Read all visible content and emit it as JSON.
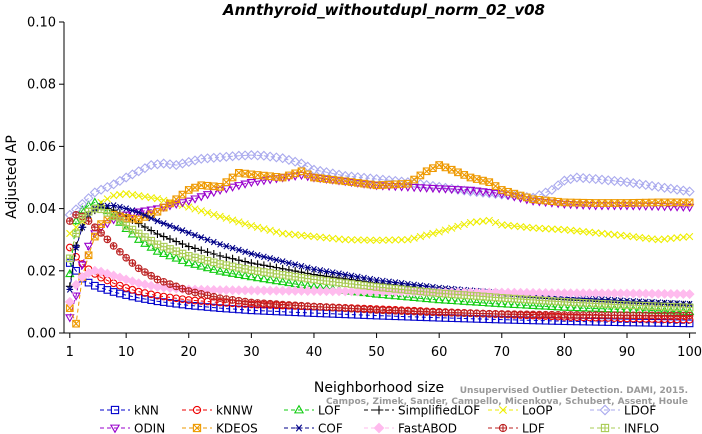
{
  "chart_data": {
    "type": "line",
    "title": "Annthyroid_withoutdupl_norm_02_v08",
    "xlabel": "Neighborhood size",
    "ylabel": "Adjusted AP",
    "xlim": [
      1,
      100
    ],
    "ylim": [
      0,
      0.1
    ],
    "xticks": [
      1,
      10,
      20,
      30,
      40,
      50,
      60,
      70,
      80,
      90,
      100
    ],
    "yticks": [
      "0.00",
      "0.02",
      "0.04",
      "0.06",
      "0.08",
      "0.10"
    ],
    "grid": false,
    "legend_position": "bottom",
    "watermark": [
      "Unsupervised Outlier Detection. DAMI, 2015.",
      "Campos, Zimek, Sander, Campello, Micenkova, Schubert, Assent, Houle"
    ],
    "series": [
      {
        "name": "kNN",
        "color": "#0000cc",
        "marker": "square",
        "points": [
          [
            1,
            0.0225
          ],
          [
            2,
            0.02
          ],
          [
            3,
            0.0175
          ],
          [
            4,
            0.0162
          ],
          [
            5,
            0.0152
          ],
          [
            6,
            0.0145
          ],
          [
            8,
            0.0132
          ],
          [
            10,
            0.0122
          ],
          [
            12,
            0.0113
          ],
          [
            15,
            0.0102
          ],
          [
            20,
            0.0089
          ],
          [
            25,
            0.008
          ],
          [
            30,
            0.0073
          ],
          [
            40,
            0.0064
          ],
          [
            50,
            0.0056
          ],
          [
            60,
            0.0049
          ],
          [
            70,
            0.0043
          ],
          [
            80,
            0.0038
          ],
          [
            90,
            0.0034
          ],
          [
            100,
            0.0031
          ]
        ]
      },
      {
        "name": "kNNW",
        "color": "#ee0000",
        "marker": "circle",
        "points": [
          [
            1,
            0.0275
          ],
          [
            2,
            0.0245
          ],
          [
            3,
            0.0222
          ],
          [
            4,
            0.0205
          ],
          [
            5,
            0.019
          ],
          [
            6,
            0.0178
          ],
          [
            8,
            0.016
          ],
          [
            10,
            0.0145
          ],
          [
            12,
            0.0133
          ],
          [
            15,
            0.012
          ],
          [
            20,
            0.0106
          ],
          [
            25,
            0.0098
          ],
          [
            30,
            0.0092
          ],
          [
            40,
            0.0085
          ],
          [
            50,
            0.0077
          ],
          [
            60,
            0.0068
          ],
          [
            70,
            0.006
          ],
          [
            80,
            0.0052
          ],
          [
            90,
            0.0047
          ],
          [
            100,
            0.0043
          ]
        ]
      },
      {
        "name": "LOF",
        "color": "#11cc11",
        "marker": "triangle-up",
        "points": [
          [
            1,
            0.019
          ],
          [
            2,
            0.036
          ],
          [
            3,
            0.0395
          ],
          [
            4,
            0.041
          ],
          [
            5,
            0.042
          ],
          [
            6,
            0.041
          ],
          [
            8,
            0.0375
          ],
          [
            10,
            0.0335
          ],
          [
            12,
            0.03
          ],
          [
            15,
            0.0262
          ],
          [
            20,
            0.0225
          ],
          [
            25,
            0.0198
          ],
          [
            30,
            0.018
          ],
          [
            40,
            0.0148
          ],
          [
            50,
            0.0124
          ],
          [
            60,
            0.0106
          ],
          [
            70,
            0.0093
          ],
          [
            80,
            0.0082
          ],
          [
            90,
            0.0075
          ],
          [
            100,
            0.0068
          ]
        ]
      },
      {
        "name": "SimplifiedLOF",
        "color": "#000000",
        "marker": "plus",
        "points": [
          [
            1,
            0.015
          ],
          [
            2,
            0.028
          ],
          [
            3,
            0.034
          ],
          [
            4,
            0.038
          ],
          [
            5,
            0.0395
          ],
          [
            6,
            0.0405
          ],
          [
            8,
            0.0395
          ],
          [
            10,
            0.0375
          ],
          [
            12,
            0.0352
          ],
          [
            15,
            0.0318
          ],
          [
            20,
            0.0278
          ],
          [
            25,
            0.0248
          ],
          [
            30,
            0.0225
          ],
          [
            40,
            0.0188
          ],
          [
            50,
            0.016
          ],
          [
            60,
            0.0138
          ],
          [
            70,
            0.0121
          ],
          [
            80,
            0.0107
          ],
          [
            90,
            0.0097
          ],
          [
            100,
            0.009
          ]
        ]
      },
      {
        "name": "LoOP",
        "color": "#eeee00",
        "marker": "x",
        "points": [
          [
            1,
            0.032
          ],
          [
            2,
            0.034
          ],
          [
            4,
            0.0378
          ],
          [
            6,
            0.042
          ],
          [
            8,
            0.0442
          ],
          [
            10,
            0.0448
          ],
          [
            15,
            0.0432
          ],
          [
            20,
            0.0405
          ],
          [
            25,
            0.0375
          ],
          [
            30,
            0.0345
          ],
          [
            35,
            0.032
          ],
          [
            40,
            0.031
          ],
          [
            45,
            0.03
          ],
          [
            50,
            0.0298
          ],
          [
            55,
            0.03
          ],
          [
            60,
            0.0325
          ],
          [
            65,
            0.0355
          ],
          [
            68,
            0.0362
          ],
          [
            70,
            0.0348
          ],
          [
            75,
            0.0338
          ],
          [
            80,
            0.0332
          ],
          [
            85,
            0.0322
          ],
          [
            90,
            0.0312
          ],
          [
            95,
            0.03
          ],
          [
            100,
            0.031
          ]
        ]
      },
      {
        "name": "LDOF",
        "color": "#aaaaee",
        "marker": "diamond",
        "points": [
          [
            1,
            0.038
          ],
          [
            3,
            0.0415
          ],
          [
            5,
            0.0452
          ],
          [
            8,
            0.0478
          ],
          [
            10,
            0.05
          ],
          [
            12,
            0.052
          ],
          [
            14,
            0.054
          ],
          [
            16,
            0.0545
          ],
          [
            18,
            0.054
          ],
          [
            20,
            0.055
          ],
          [
            22,
            0.056
          ],
          [
            25,
            0.0565
          ],
          [
            28,
            0.057
          ],
          [
            30,
            0.0572
          ],
          [
            32,
            0.057
          ],
          [
            35,
            0.0562
          ],
          [
            38,
            0.0545
          ],
          [
            40,
            0.0525
          ],
          [
            45,
            0.0505
          ],
          [
            50,
            0.0495
          ],
          [
            55,
            0.0485
          ],
          [
            60,
            0.047
          ],
          [
            65,
            0.0455
          ],
          [
            70,
            0.0445
          ],
          [
            75,
            0.0435
          ],
          [
            78,
            0.046
          ],
          [
            80,
            0.049
          ],
          [
            82,
            0.05
          ],
          [
            85,
            0.0495
          ],
          [
            90,
            0.0485
          ],
          [
            95,
            0.047
          ],
          [
            100,
            0.0455
          ]
        ]
      },
      {
        "name": "ODIN",
        "color": "#9900cc",
        "marker": "triangle-down",
        "points": [
          [
            1,
            0.005
          ],
          [
            2,
            0.012
          ],
          [
            3,
            0.022
          ],
          [
            4,
            0.028
          ],
          [
            5,
            0.032
          ],
          [
            6,
            0.034
          ],
          [
            8,
            0.0365
          ],
          [
            10,
            0.038
          ],
          [
            12,
            0.039
          ],
          [
            15,
            0.04
          ],
          [
            20,
            0.0425
          ],
          [
            25,
            0.046
          ],
          [
            30,
            0.0485
          ],
          [
            35,
            0.05
          ],
          [
            38,
            0.0508
          ],
          [
            40,
            0.05
          ],
          [
            45,
            0.0488
          ],
          [
            50,
            0.0475
          ],
          [
            55,
            0.047
          ],
          [
            60,
            0.0465
          ],
          [
            65,
            0.046
          ],
          [
            70,
            0.0448
          ],
          [
            75,
            0.0425
          ],
          [
            80,
            0.0415
          ],
          [
            85,
            0.041
          ],
          [
            90,
            0.041
          ],
          [
            95,
            0.0408
          ],
          [
            100,
            0.0405
          ]
        ]
      },
      {
        "name": "KDEOS",
        "color": "#ee9900",
        "marker": "square-x",
        "points": [
          [
            1,
            0.008
          ],
          [
            2,
            0.003
          ],
          [
            3,
            0.018
          ],
          [
            4,
            0.025
          ],
          [
            5,
            0.031
          ],
          [
            6,
            0.035
          ],
          [
            8,
            0.038
          ],
          [
            10,
            0.037
          ],
          [
            12,
            0.0365
          ],
          [
            15,
            0.039
          ],
          [
            18,
            0.043
          ],
          [
            20,
            0.046
          ],
          [
            22,
            0.0475
          ],
          [
            25,
            0.047
          ],
          [
            28,
            0.0515
          ],
          [
            30,
            0.051
          ],
          [
            35,
            0.05
          ],
          [
            38,
            0.052
          ],
          [
            40,
            0.05
          ],
          [
            45,
            0.0488
          ],
          [
            50,
            0.0475
          ],
          [
            55,
            0.048
          ],
          [
            58,
            0.052
          ],
          [
            60,
            0.054
          ],
          [
            62,
            0.0525
          ],
          [
            65,
            0.05
          ],
          [
            68,
            0.0485
          ],
          [
            70,
            0.046
          ],
          [
            75,
            0.043
          ],
          [
            80,
            0.042
          ],
          [
            85,
            0.0418
          ],
          [
            90,
            0.0418
          ],
          [
            95,
            0.042
          ],
          [
            100,
            0.042
          ]
        ]
      },
      {
        "name": "COF",
        "color": "#000088",
        "marker": "asterisk",
        "points": [
          [
            1,
            0.014
          ],
          [
            2,
            0.0275
          ],
          [
            3,
            0.034
          ],
          [
            4,
            0.038
          ],
          [
            5,
            0.04
          ],
          [
            6,
            0.0408
          ],
          [
            8,
            0.041
          ],
          [
            10,
            0.04
          ],
          [
            12,
            0.0388
          ],
          [
            15,
            0.036
          ],
          [
            20,
            0.0322
          ],
          [
            25,
            0.0285
          ],
          [
            30,
            0.0255
          ],
          [
            40,
            0.0205
          ],
          [
            50,
            0.017
          ],
          [
            60,
            0.0145
          ],
          [
            70,
            0.0128
          ],
          [
            80,
            0.0115
          ],
          [
            90,
            0.0103
          ],
          [
            100,
            0.0093
          ]
        ]
      },
      {
        "name": "FastABOD",
        "color": "#ffbbee",
        "marker": "diamond-filled",
        "points": [
          [
            1,
            0.01
          ],
          [
            2,
            0.0155
          ],
          [
            3,
            0.018
          ],
          [
            4,
            0.0192
          ],
          [
            5,
            0.02
          ],
          [
            6,
            0.0197
          ],
          [
            8,
            0.0185
          ],
          [
            10,
            0.0172
          ],
          [
            12,
            0.016
          ],
          [
            15,
            0.0148
          ],
          [
            20,
            0.014
          ],
          [
            25,
            0.0138
          ],
          [
            30,
            0.0137
          ],
          [
            40,
            0.0135
          ],
          [
            50,
            0.0133
          ],
          [
            60,
            0.0131
          ],
          [
            70,
            0.013
          ],
          [
            80,
            0.0128
          ],
          [
            90,
            0.0127
          ],
          [
            100,
            0.0125
          ]
        ]
      },
      {
        "name": "LDF",
        "color": "#bb2222",
        "marker": "circle-plus",
        "points": [
          [
            1,
            0.036
          ],
          [
            2,
            0.038
          ],
          [
            3,
            0.0375
          ],
          [
            4,
            0.036
          ],
          [
            5,
            0.034
          ],
          [
            6,
            0.0322
          ],
          [
            8,
            0.028
          ],
          [
            10,
            0.0242
          ],
          [
            12,
            0.0208
          ],
          [
            15,
            0.0172
          ],
          [
            20,
            0.0135
          ],
          [
            25,
            0.0112
          ],
          [
            30,
            0.0098
          ],
          [
            40,
            0.0085
          ],
          [
            50,
            0.0074
          ],
          [
            60,
            0.0066
          ],
          [
            70,
            0.0061
          ],
          [
            80,
            0.0058
          ],
          [
            90,
            0.0057
          ],
          [
            100,
            0.0056
          ]
        ]
      },
      {
        "name": "INFLO",
        "color": "#aacc55",
        "marker": "square-cross",
        "points": [
          [
            1,
            0.024
          ],
          [
            2,
            0.032
          ],
          [
            3,
            0.037
          ],
          [
            4,
            0.039
          ],
          [
            5,
            0.04
          ],
          [
            6,
            0.0398
          ],
          [
            8,
            0.0375
          ],
          [
            10,
            0.0345
          ],
          [
            12,
            0.032
          ],
          [
            15,
            0.0285
          ],
          [
            20,
            0.0248
          ],
          [
            25,
            0.0222
          ],
          [
            30,
            0.0202
          ],
          [
            40,
            0.0172
          ],
          [
            50,
            0.0148
          ],
          [
            60,
            0.0128
          ],
          [
            70,
            0.0113
          ],
          [
            80,
            0.01
          ],
          [
            90,
            0.009
          ],
          [
            100,
            0.0082
          ]
        ]
      }
    ]
  }
}
